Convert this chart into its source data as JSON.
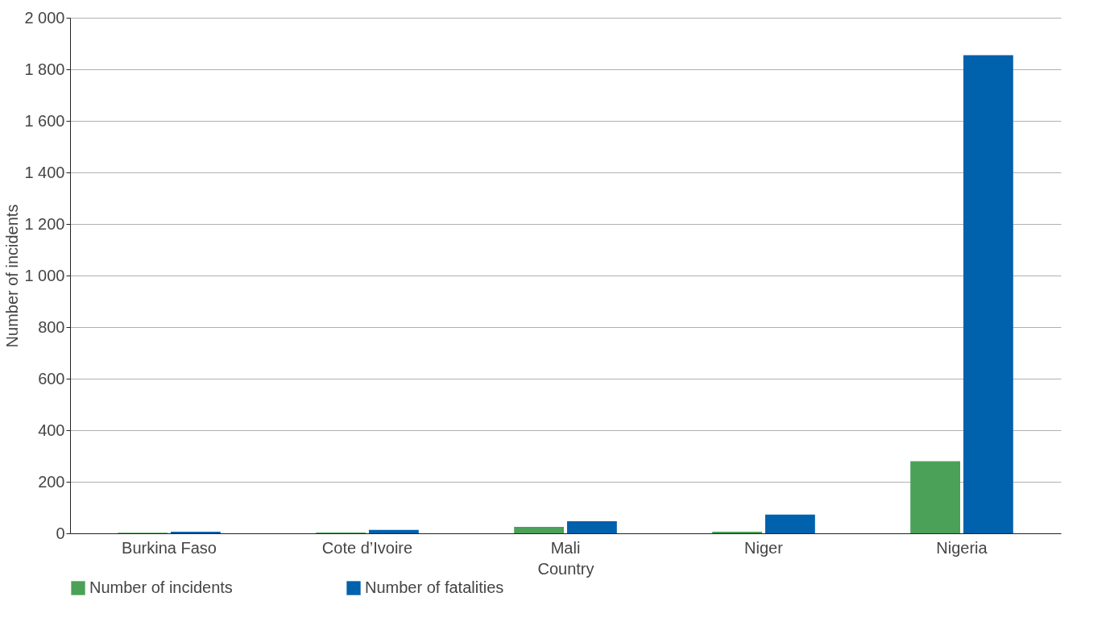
{
  "chart_data": {
    "type": "bar",
    "xlabel": "Country",
    "ylabel": "Number of incidents",
    "categories": [
      "Burkina Faso",
      "Cote d’Ivoire",
      "Mali",
      "Niger",
      "Nigeria"
    ],
    "series": [
      {
        "name": "Number of incidents",
        "color": "#4aa157",
        "values": [
          2,
          3,
          25,
          6,
          280
        ]
      },
      {
        "name": "Number of fatalities",
        "color": "#0061ad",
        "values": [
          6,
          13,
          47,
          73,
          1855
        ]
      }
    ],
    "ylim": [
      0,
      2000
    ],
    "yticks": [
      0,
      200,
      400,
      600,
      800,
      {
        "value": 1000,
        "label": "1 000"
      },
      {
        "value": 1200,
        "label": "1 200"
      },
      {
        "value": 1400,
        "label": "1 400"
      },
      {
        "value": 1600,
        "label": "1 600"
      },
      {
        "value": 1800,
        "label": "1 800"
      },
      {
        "value": 2000,
        "label": "2 000"
      }
    ],
    "grid": "y",
    "legend": "bottom left"
  }
}
